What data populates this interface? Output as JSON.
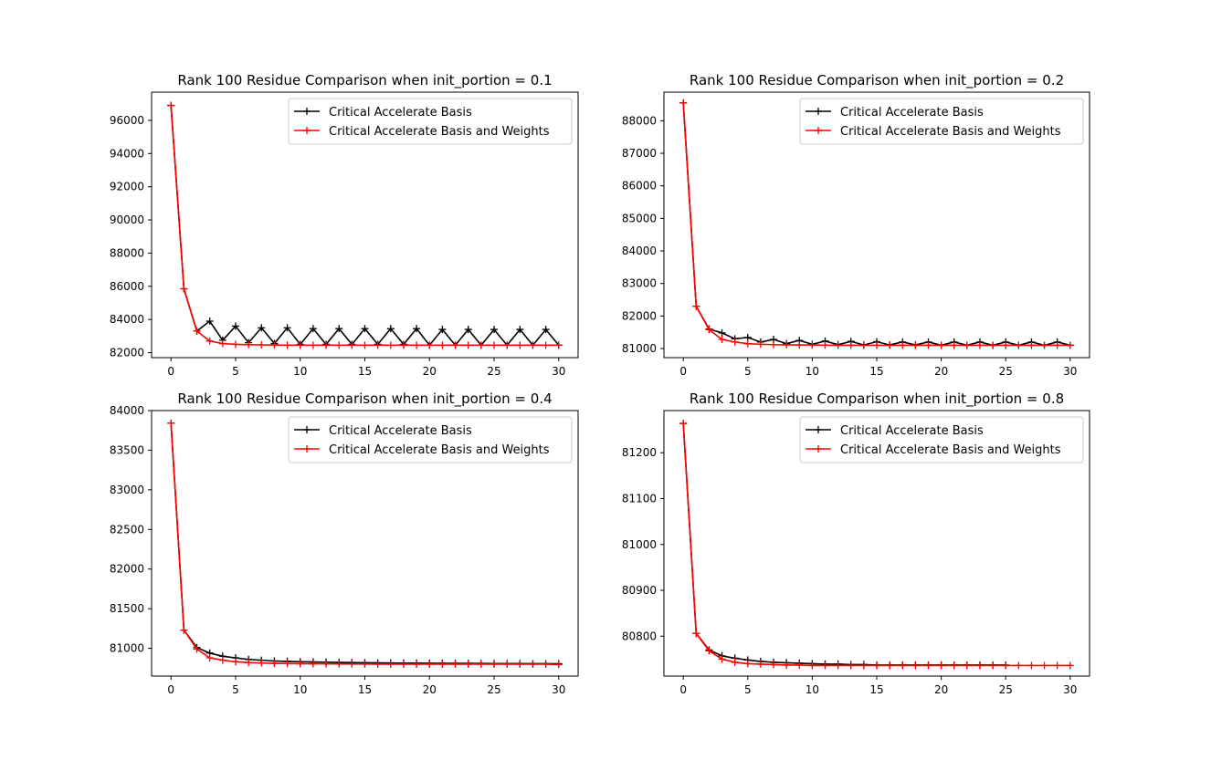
{
  "colors": {
    "series_a": "#000000",
    "series_b": "#ff0000",
    "frame": "#000000",
    "legend_border": "#cccccc"
  },
  "chart_data": [
    {
      "type": "line",
      "title": "Rank 100 Residue Comparison when init_portion = 0.1",
      "xlabel": "",
      "ylabel": "",
      "xlim": [
        -1.5,
        31.5
      ],
      "ylim": [
        81700,
        97700
      ],
      "xticks": [
        0,
        5,
        10,
        15,
        20,
        25,
        30
      ],
      "yticks": [
        82000,
        84000,
        86000,
        88000,
        90000,
        92000,
        94000,
        96000
      ],
      "legend": "upper right",
      "series": [
        {
          "name": "Critical Accelerate Basis",
          "color": "#000000",
          "marker": "+",
          "x": [
            0,
            1,
            2,
            3,
            4,
            5,
            6,
            7,
            8,
            9,
            10,
            11,
            12,
            13,
            14,
            15,
            16,
            17,
            18,
            19,
            20,
            21,
            22,
            23,
            24,
            25,
            26,
            27,
            28,
            29,
            30
          ],
          "y": [
            96900,
            85850,
            83300,
            83900,
            82750,
            83600,
            82600,
            83500,
            82550,
            83500,
            82500,
            83450,
            82500,
            83450,
            82500,
            83450,
            82500,
            83450,
            82500,
            83450,
            82450,
            83400,
            82450,
            83400,
            82450,
            83400,
            82450,
            83400,
            82450,
            83400,
            82450
          ]
        },
        {
          "name": "Critical Accelerate Basis and Weights",
          "color": "#ff0000",
          "marker": "+",
          "x": [
            0,
            1,
            2,
            3,
            4,
            5,
            6,
            7,
            8,
            9,
            10,
            11,
            12,
            13,
            14,
            15,
            16,
            17,
            18,
            19,
            20,
            21,
            22,
            23,
            24,
            25,
            26,
            27,
            28,
            29,
            30
          ],
          "y": [
            96900,
            85850,
            83300,
            82700,
            82550,
            82500,
            82480,
            82470,
            82460,
            82455,
            82450,
            82450,
            82450,
            82450,
            82450,
            82450,
            82450,
            82450,
            82450,
            82450,
            82450,
            82450,
            82450,
            82450,
            82450,
            82450,
            82450,
            82450,
            82450,
            82450,
            82450
          ]
        }
      ]
    },
    {
      "type": "line",
      "title": "Rank 100 Residue Comparison when init_portion = 0.2",
      "xlabel": "",
      "ylabel": "",
      "xlim": [
        -1.5,
        31.5
      ],
      "ylim": [
        80720,
        88880
      ],
      "xticks": [
        0,
        5,
        10,
        15,
        20,
        25,
        30
      ],
      "yticks": [
        81000,
        82000,
        83000,
        84000,
        85000,
        86000,
        87000,
        88000
      ],
      "legend": "upper right",
      "series": [
        {
          "name": "Critical Accelerate Basis",
          "color": "#000000",
          "marker": "+",
          "x": [
            0,
            1,
            2,
            3,
            4,
            5,
            6,
            7,
            8,
            9,
            10,
            11,
            12,
            13,
            14,
            15,
            16,
            17,
            18,
            19,
            20,
            21,
            22,
            23,
            24,
            25,
            26,
            27,
            28,
            29,
            30
          ],
          "y": [
            88550,
            82300,
            81600,
            81480,
            81300,
            81340,
            81200,
            81280,
            81150,
            81250,
            81130,
            81230,
            81120,
            81220,
            81110,
            81210,
            81110,
            81200,
            81110,
            81200,
            81100,
            81200,
            81100,
            81200,
            81100,
            81200,
            81100,
            81200,
            81100,
            81200,
            81100
          ]
        },
        {
          "name": "Critical Accelerate Basis and Weights",
          "color": "#ff0000",
          "marker": "+",
          "x": [
            0,
            1,
            2,
            3,
            4,
            5,
            6,
            7,
            8,
            9,
            10,
            11,
            12,
            13,
            14,
            15,
            16,
            17,
            18,
            19,
            20,
            21,
            22,
            23,
            24,
            25,
            26,
            27,
            28,
            29,
            30
          ],
          "y": [
            88550,
            82300,
            81580,
            81280,
            81200,
            81150,
            81130,
            81120,
            81115,
            81110,
            81110,
            81105,
            81100,
            81100,
            81100,
            81100,
            81100,
            81100,
            81100,
            81100,
            81100,
            81100,
            81100,
            81100,
            81100,
            81100,
            81100,
            81100,
            81100,
            81100,
            81100
          ]
        }
      ]
    },
    {
      "type": "line",
      "title": "Rank 100 Residue Comparison when init_portion = 0.4",
      "xlabel": "",
      "ylabel": "",
      "xlim": [
        -1.5,
        31.5
      ],
      "ylim": [
        80650,
        84000
      ],
      "xticks": [
        0,
        5,
        10,
        15,
        20,
        25,
        30
      ],
      "yticks": [
        81000,
        81500,
        82000,
        82500,
        83000,
        83500,
        84000
      ],
      "legend": "upper right",
      "series": [
        {
          "name": "Critical Accelerate Basis",
          "color": "#000000",
          "marker": "+",
          "x": [
            0,
            1,
            2,
            3,
            4,
            5,
            6,
            7,
            8,
            9,
            10,
            11,
            12,
            13,
            14,
            15,
            16,
            17,
            18,
            19,
            20,
            21,
            22,
            23,
            24,
            25,
            26,
            27,
            28,
            29,
            30
          ],
          "y": [
            83840,
            81230,
            81010,
            80940,
            80900,
            80880,
            80860,
            80850,
            80840,
            80835,
            80830,
            80828,
            80825,
            80822,
            80820,
            80818,
            80816,
            80815,
            80814,
            80813,
            80812,
            80811,
            80810,
            80810,
            80809,
            80808,
            80808,
            80807,
            80806,
            80806,
            80805
          ]
        },
        {
          "name": "Critical Accelerate Basis and Weights",
          "color": "#ff0000",
          "marker": "+",
          "x": [
            0,
            1,
            2,
            3,
            4,
            5,
            6,
            7,
            8,
            9,
            10,
            11,
            12,
            13,
            14,
            15,
            16,
            17,
            18,
            19,
            20,
            21,
            22,
            23,
            24,
            25,
            26,
            27,
            28,
            29,
            30
          ],
          "y": [
            83840,
            81230,
            80990,
            80880,
            80850,
            80830,
            80820,
            80815,
            80810,
            80808,
            80806,
            80805,
            80804,
            80803,
            80802,
            80801,
            80800,
            80800,
            80800,
            80800,
            80800,
            80800,
            80800,
            80800,
            80800,
            80800,
            80800,
            80800,
            80800,
            80800,
            80795
          ]
        }
      ]
    },
    {
      "type": "line",
      "title": "Rank 100 Residue Comparison when init_portion = 0.8",
      "xlabel": "",
      "ylabel": "",
      "xlim": [
        -1.5,
        31.5
      ],
      "ylim": [
        80713,
        81292
      ],
      "xticks": [
        0,
        5,
        10,
        15,
        20,
        25,
        30
      ],
      "yticks": [
        80800,
        80900,
        81000,
        81100,
        81200
      ],
      "legend": "upper right",
      "series": [
        {
          "name": "Critical Accelerate Basis",
          "color": "#000000",
          "marker": "+",
          "x": [
            0,
            1,
            2,
            3,
            4,
            5,
            6,
            7,
            8,
            9,
            10,
            11,
            12,
            13,
            14,
            15,
            16,
            17,
            18,
            19,
            20,
            21,
            22,
            23,
            24,
            25
          ],
          "y": [
            81264,
            80806,
            80770,
            80757,
            80752,
            80748,
            80745,
            80743,
            80742,
            80741,
            80740,
            80739,
            80739,
            80738,
            80738,
            80737,
            80737,
            80737,
            80737,
            80737,
            80737,
            80737,
            80737,
            80737,
            80737,
            80737
          ]
        },
        {
          "name": "Critical Accelerate Basis and Weights",
          "color": "#ff0000",
          "marker": "+",
          "x": [
            0,
            1,
            2,
            3,
            4,
            5,
            6,
            7,
            8,
            9,
            10,
            11,
            12,
            13,
            14,
            15,
            16,
            17,
            18,
            19,
            20,
            21,
            22,
            23,
            24,
            25,
            26,
            27,
            28,
            29,
            30
          ],
          "y": [
            81264,
            80806,
            80768,
            80750,
            80743,
            80740,
            80739,
            80738,
            80737,
            80737,
            80736,
            80736,
            80736,
            80736,
            80736,
            80736,
            80736,
            80736,
            80736,
            80736,
            80736,
            80736,
            80736,
            80736,
            80736,
            80736,
            80736,
            80736,
            80736,
            80736,
            80736
          ]
        }
      ]
    }
  ]
}
